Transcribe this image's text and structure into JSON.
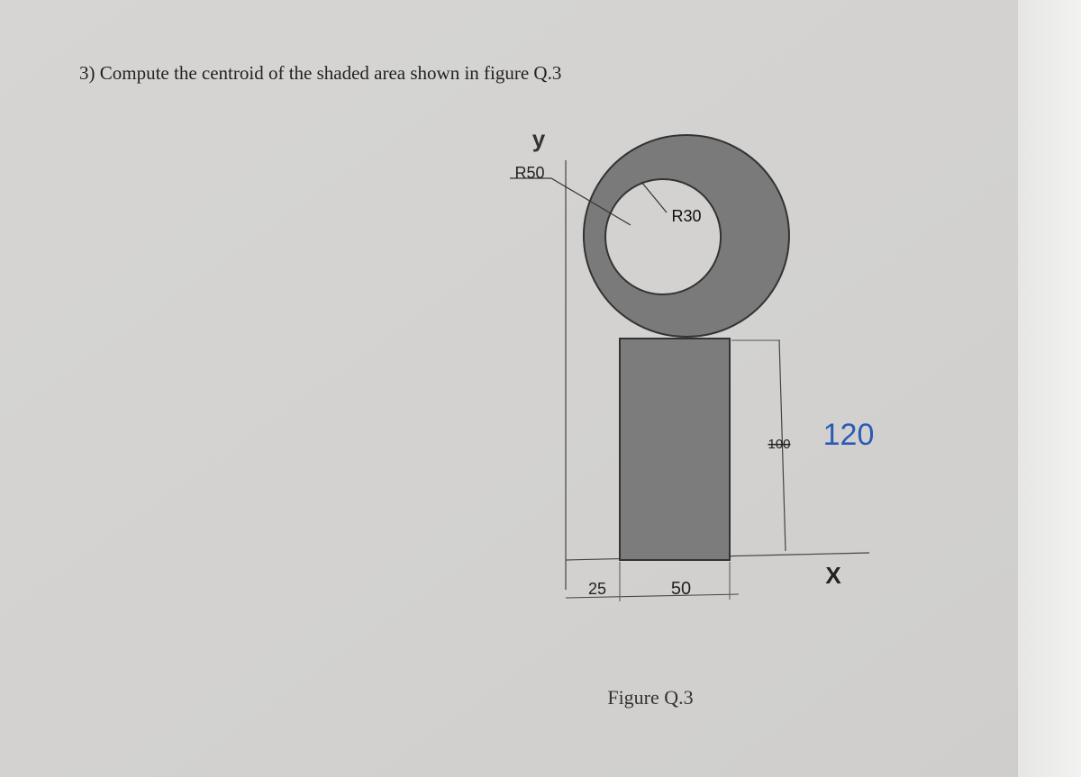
{
  "question": "3) Compute the centroid of the shaded area shown in figure Q.3",
  "figure": {
    "caption": "Figure Q.3",
    "labels": {
      "y_axis": "y",
      "x_axis": "X",
      "outer_radius": "R50",
      "inner_radius": "R30",
      "height_printed": "100",
      "height_handwritten": "120",
      "offset": "25",
      "width": "50"
    }
  }
}
